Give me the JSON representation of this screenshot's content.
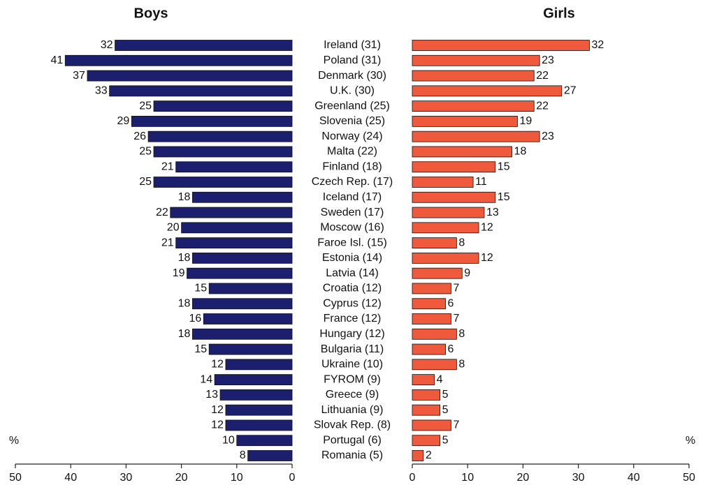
{
  "chart_data": {
    "type": "bar",
    "orientation": "horizontal",
    "categories": [
      "Ireland (31)",
      "Poland (31)",
      "Denmark (30)",
      "U.K. (30)",
      "Greenland (25)",
      "Slovenia (25)",
      "Norway (24)",
      "Malta (22)",
      "Finland (18)",
      "Czech Rep. (17)",
      "Iceland (17)",
      "Sweden (17)",
      "Moscow (16)",
      "Faroe Isl. (15)",
      "Estonia (14)",
      "Latvia (14)",
      "Croatia (12)",
      "Cyprus (12)",
      "France (12)",
      "Hungary (12)",
      "Bulgaria (11)",
      "Ukraine (10)",
      "FYROM (9)",
      "Greece (9)",
      "Lithuania (9)",
      "Slovak Rep. (8)",
      "Portugal (6)",
      "Romania (5)"
    ],
    "series": [
      {
        "name": "Boys",
        "color": "#1c1f6e",
        "values": [
          32,
          41,
          37,
          33,
          25,
          29,
          26,
          25,
          21,
          25,
          18,
          22,
          20,
          21,
          18,
          19,
          15,
          18,
          16,
          18,
          15,
          12,
          14,
          13,
          12,
          12,
          10,
          8
        ]
      },
      {
        "name": "Girls",
        "color": "#f05a3c",
        "values": [
          32,
          23,
          22,
          27,
          22,
          19,
          23,
          18,
          15,
          11,
          15,
          13,
          12,
          8,
          12,
          9,
          7,
          6,
          7,
          8,
          6,
          8,
          4,
          5,
          5,
          7,
          5,
          2
        ]
      }
    ],
    "x_label": "%",
    "xlim": [
      0,
      50
    ],
    "xticks": [
      0,
      10,
      20,
      30,
      40,
      50
    ]
  }
}
